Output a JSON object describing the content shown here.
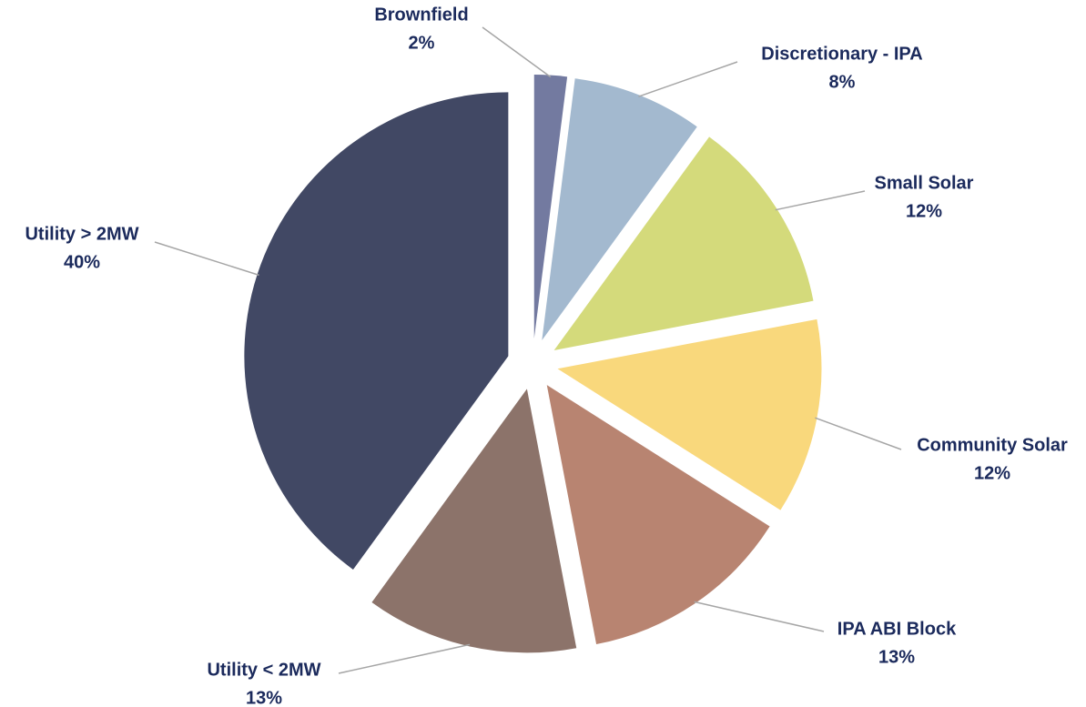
{
  "chart_data": {
    "type": "pie",
    "categories": [
      "Brownfield",
      "Discretionary - IPA",
      "Small Solar",
      "Community Solar",
      "IPA ABI Block",
      "Utility < 2MW",
      "Utility > 2MW"
    ],
    "values": [
      2,
      8,
      12,
      12,
      13,
      13,
      40
    ],
    "value_labels": [
      "2%",
      "8%",
      "12%",
      "12%",
      "13%",
      "13%",
      "40%"
    ],
    "colors": [
      "#737aa0",
      "#a3b9cf",
      "#d4da7b",
      "#f9d87c",
      "#b88471",
      "#8c736a",
      "#414864"
    ]
  }
}
